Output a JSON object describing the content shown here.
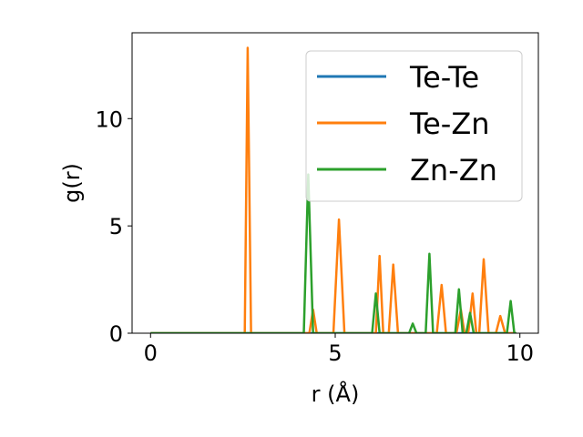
{
  "chart_data": {
    "type": "line",
    "xlabel": "r (Å)",
    "ylabel": "g(r)",
    "xlim": [
      -0.5,
      10.5
    ],
    "ylim": [
      0,
      14
    ],
    "xticks": [
      0,
      5,
      10
    ],
    "yticks": [
      0,
      5,
      10
    ],
    "grid": false,
    "legend_position": "top-right",
    "series": [
      {
        "name": "Te-Te",
        "color": "#1f77b4",
        "points": [
          [
            0,
            0
          ],
          [
            9.9,
            0
          ]
        ]
      },
      {
        "name": "Te-Zn",
        "color": "#ff7f0e",
        "points": [
          [
            0,
            0
          ],
          [
            2.55,
            0
          ],
          [
            2.63,
            13.3
          ],
          [
            2.72,
            0
          ],
          [
            4.3,
            0
          ],
          [
            4.4,
            1.1
          ],
          [
            4.5,
            0
          ],
          [
            4.95,
            0
          ],
          [
            5.1,
            5.3
          ],
          [
            5.25,
            0
          ],
          [
            6.1,
            0
          ],
          [
            6.2,
            3.6
          ],
          [
            6.3,
            0
          ],
          [
            6.45,
            0
          ],
          [
            6.57,
            3.2
          ],
          [
            6.7,
            0
          ],
          [
            7.75,
            0
          ],
          [
            7.88,
            2.25
          ],
          [
            8.0,
            0
          ],
          [
            8.28,
            0
          ],
          [
            8.4,
            1.1
          ],
          [
            8.5,
            0
          ],
          [
            8.6,
            0
          ],
          [
            8.72,
            1.85
          ],
          [
            8.82,
            0
          ],
          [
            8.9,
            0
          ],
          [
            9.02,
            3.45
          ],
          [
            9.15,
            0
          ],
          [
            9.35,
            0
          ],
          [
            9.47,
            0.8
          ],
          [
            9.6,
            0
          ],
          [
            9.9,
            0
          ]
        ]
      },
      {
        "name": "Zn-Zn",
        "color": "#2ca02c",
        "points": [
          [
            0,
            0
          ],
          [
            4.15,
            0
          ],
          [
            4.27,
            7.4
          ],
          [
            4.4,
            0
          ],
          [
            6.0,
            0
          ],
          [
            6.1,
            1.85
          ],
          [
            6.2,
            0
          ],
          [
            7.0,
            0
          ],
          [
            7.1,
            0.45
          ],
          [
            7.2,
            0
          ],
          [
            7.45,
            0
          ],
          [
            7.55,
            3.7
          ],
          [
            7.65,
            0
          ],
          [
            8.25,
            0
          ],
          [
            8.35,
            2.05
          ],
          [
            8.45,
            0
          ],
          [
            8.55,
            0
          ],
          [
            8.65,
            0.95
          ],
          [
            8.75,
            0
          ],
          [
            9.65,
            0
          ],
          [
            9.75,
            1.5
          ],
          [
            9.85,
            0
          ],
          [
            9.9,
            0
          ]
        ]
      }
    ]
  }
}
